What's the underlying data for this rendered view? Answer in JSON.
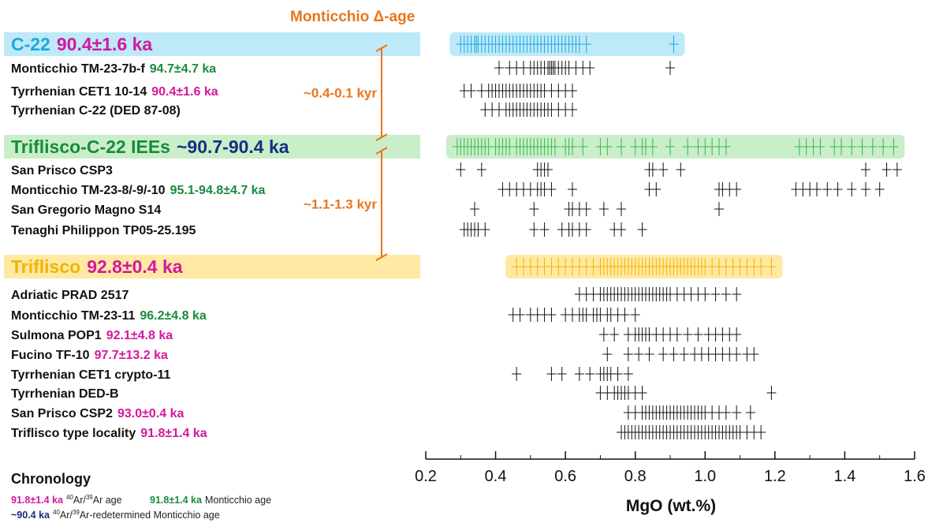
{
  "chart_data": {
    "type": "scatter",
    "title": "Monticchio Δ-age",
    "xlabel": "MgO (wt.%)",
    "xlim": [
      0.2,
      1.6
    ],
    "x_ticks": [
      "0.2",
      "0.4",
      "0.6",
      "0.8",
      "1.0",
      "1.2",
      "1.4",
      "1.6"
    ],
    "rows": [
      {
        "group": "C-22",
        "label": "C-22",
        "age": "90.4±1.6 ka",
        "age_color": "#d4179e",
        "label_color": "#1ea7df",
        "kind": "header",
        "band_color": "#bde9f8",
        "mark_color": "#1ea7df",
        "x": [
          0.3,
          0.31,
          0.32,
          0.33,
          0.34,
          0.345,
          0.35,
          0.36,
          0.37,
          0.38,
          0.39,
          0.4,
          0.41,
          0.42,
          0.43,
          0.44,
          0.45,
          0.46,
          0.47,
          0.48,
          0.49,
          0.5,
          0.51,
          0.52,
          0.53,
          0.54,
          0.55,
          0.56,
          0.57,
          0.58,
          0.59,
          0.6,
          0.61,
          0.62,
          0.63,
          0.64,
          0.66,
          0.91
        ]
      },
      {
        "group": "C-22",
        "label": "Monticchio TM-23-7b-f",
        "age": "94.7±4.7 ka",
        "age_color": "#1a8a3c",
        "kind": "sample",
        "x": [
          0.41,
          0.44,
          0.46,
          0.48,
          0.5,
          0.51,
          0.52,
          0.53,
          0.54,
          0.55,
          0.555,
          0.56,
          0.565,
          0.57,
          0.58,
          0.59,
          0.6,
          0.61,
          0.63,
          0.65,
          0.67,
          0.9
        ]
      },
      {
        "group": "C-22",
        "label": "Tyrrhenian CET1 10-14",
        "age": "90.4±1.6 ka",
        "age_color": "#d4179e",
        "kind": "sample",
        "x": [
          0.31,
          0.33,
          0.36,
          0.38,
          0.39,
          0.4,
          0.41,
          0.42,
          0.43,
          0.44,
          0.45,
          0.46,
          0.47,
          0.48,
          0.49,
          0.5,
          0.51,
          0.52,
          0.53,
          0.54,
          0.56,
          0.58,
          0.6,
          0.62
        ]
      },
      {
        "group": "C-22",
        "label": "Tyrrhenian C-22 (DED 87-08)",
        "age": "",
        "kind": "sample",
        "x": [
          0.37,
          0.39,
          0.41,
          0.43,
          0.44,
          0.45,
          0.46,
          0.47,
          0.48,
          0.49,
          0.5,
          0.51,
          0.52,
          0.53,
          0.54,
          0.55,
          0.56,
          0.58,
          0.6,
          0.62
        ]
      },
      {
        "group": "Triflisco-C-22 IEEs",
        "label": "Triflisco-C-22 IEEs",
        "age": "~90.7-90.4 ka",
        "age_color": "#14307f",
        "label_color": "#1a8a3c",
        "kind": "header",
        "band_color": "#c9eec9",
        "mark_color": "#3cb64a",
        "x": [
          0.29,
          0.3,
          0.31,
          0.32,
          0.33,
          0.34,
          0.35,
          0.36,
          0.37,
          0.38,
          0.4,
          0.41,
          0.42,
          0.43,
          0.44,
          0.46,
          0.47,
          0.48,
          0.49,
          0.5,
          0.51,
          0.52,
          0.53,
          0.54,
          0.55,
          0.56,
          0.57,
          0.6,
          0.61,
          0.62,
          0.65,
          0.7,
          0.72,
          0.76,
          0.8,
          0.82,
          0.83,
          0.85,
          0.9,
          0.95,
          0.98,
          1.0,
          1.02,
          1.04,
          1.06,
          1.27,
          1.29,
          1.31,
          1.33,
          1.37,
          1.39,
          1.42,
          1.45,
          1.48,
          1.51,
          1.54
        ]
      },
      {
        "group": "Triflisco-C-22 IEEs",
        "label": "San Prisco CSP3",
        "age": "",
        "kind": "sample",
        "x": [
          0.3,
          0.36,
          0.52,
          0.53,
          0.54,
          0.55,
          0.84,
          0.85,
          0.88,
          0.93,
          1.46,
          1.52,
          1.55
        ]
      },
      {
        "group": "Triflisco-C-22 IEEs",
        "label": "Monticchio TM-23-8/-9/-10",
        "age": "95.1-94.8±4.7 ka",
        "age_color": "#1a8a3c",
        "kind": "sample",
        "x": [
          0.42,
          0.44,
          0.46,
          0.48,
          0.5,
          0.52,
          0.53,
          0.54,
          0.56,
          0.62,
          0.84,
          0.86,
          1.04,
          1.05,
          1.07,
          1.09,
          1.26,
          1.28,
          1.3,
          1.32,
          1.35,
          1.38,
          1.42,
          1.46,
          1.5
        ]
      },
      {
        "group": "Triflisco-C-22 IEEs",
        "label": "San Gregorio Magno S14",
        "age": "",
        "kind": "sample",
        "x": [
          0.34,
          0.51,
          0.61,
          0.62,
          0.64,
          0.66,
          0.71,
          0.76,
          1.04
        ]
      },
      {
        "group": "Triflisco-C-22 IEEs",
        "label": "Tenaghi Philippon TP05-25.195",
        "age": "",
        "kind": "sample",
        "x": [
          0.31,
          0.32,
          0.33,
          0.34,
          0.35,
          0.37,
          0.51,
          0.54,
          0.59,
          0.61,
          0.62,
          0.64,
          0.66,
          0.74,
          0.76,
          0.82
        ]
      },
      {
        "group": "Triflisco",
        "label": "Triflisco",
        "age": "92.8±0.4 ka",
        "age_color": "#d4179e",
        "label_color": "#f2b300",
        "kind": "header",
        "band_color": "#ffe9a3",
        "mark_color": "#f2b300",
        "x": [
          0.46,
          0.48,
          0.5,
          0.52,
          0.54,
          0.56,
          0.58,
          0.6,
          0.62,
          0.64,
          0.66,
          0.68,
          0.7,
          0.71,
          0.72,
          0.73,
          0.74,
          0.75,
          0.76,
          0.77,
          0.78,
          0.79,
          0.8,
          0.81,
          0.82,
          0.83,
          0.84,
          0.85,
          0.86,
          0.87,
          0.88,
          0.89,
          0.9,
          0.91,
          0.92,
          0.93,
          0.94,
          0.95,
          0.96,
          0.97,
          0.98,
          0.99,
          1.0,
          1.02,
          1.04,
          1.06,
          1.08,
          1.1,
          1.12,
          1.14,
          1.16,
          1.19
        ]
      },
      {
        "group": "Triflisco",
        "label": "Adriatic PRAD 2517",
        "age": "",
        "kind": "sample",
        "x": [
          0.64,
          0.66,
          0.68,
          0.7,
          0.71,
          0.72,
          0.73,
          0.74,
          0.75,
          0.76,
          0.77,
          0.78,
          0.79,
          0.8,
          0.81,
          0.82,
          0.83,
          0.84,
          0.85,
          0.86,
          0.87,
          0.88,
          0.89,
          0.9,
          0.92,
          0.94,
          0.96,
          0.98,
          1.0,
          1.03,
          1.06,
          1.09
        ]
      },
      {
        "group": "Triflisco",
        "label": "Monticchio TM-23-11",
        "age": "96.2±4.8 ka",
        "age_color": "#1a8a3c",
        "kind": "sample",
        "x": [
          0.45,
          0.47,
          0.5,
          0.52,
          0.54,
          0.56,
          0.6,
          0.62,
          0.64,
          0.65,
          0.66,
          0.68,
          0.69,
          0.7,
          0.72,
          0.73,
          0.75,
          0.77,
          0.8
        ]
      },
      {
        "group": "Triflisco",
        "label": "Sulmona POP1",
        "age": "92.1±4.8 ka",
        "age_color": "#d4179e",
        "kind": "sample",
        "x": [
          0.71,
          0.74,
          0.78,
          0.8,
          0.81,
          0.82,
          0.83,
          0.84,
          0.86,
          0.88,
          0.9,
          0.92,
          0.95,
          0.98,
          1.01,
          1.03,
          1.05,
          1.07,
          1.09
        ]
      },
      {
        "group": "Triflisco",
        "label": "Fucino TF-10",
        "age": "97.7±13.2 ka",
        "age_color": "#d4179e",
        "kind": "sample",
        "x": [
          0.72,
          0.78,
          0.81,
          0.84,
          0.88,
          0.91,
          0.94,
          0.97,
          0.99,
          1.01,
          1.03,
          1.05,
          1.07,
          1.09,
          1.12,
          1.14
        ]
      },
      {
        "group": "Triflisco",
        "label": "Tyrrhenian CET1 crypto-11",
        "age": "",
        "kind": "sample",
        "x": [
          0.46,
          0.56,
          0.59,
          0.64,
          0.67,
          0.7,
          0.71,
          0.72,
          0.73,
          0.75,
          0.78
        ]
      },
      {
        "group": "Triflisco",
        "label": "Tyrrhenian DED-B",
        "age": "",
        "kind": "sample",
        "x": [
          0.7,
          0.72,
          0.74,
          0.75,
          0.76,
          0.77,
          0.78,
          0.8,
          0.82,
          1.19
        ]
      },
      {
        "group": "Triflisco",
        "label": "San Prisco CSP2",
        "age": "93.0±0.4 ka",
        "age_color": "#d4179e",
        "kind": "sample",
        "x": [
          0.78,
          0.8,
          0.82,
          0.83,
          0.84,
          0.85,
          0.86,
          0.87,
          0.88,
          0.89,
          0.9,
          0.91,
          0.92,
          0.93,
          0.94,
          0.95,
          0.96,
          0.97,
          0.98,
          0.99,
          1.0,
          1.02,
          1.04,
          1.06,
          1.09,
          1.13
        ]
      },
      {
        "group": "Triflisco",
        "label": "Triflisco type locality",
        "age": "91.8±1.4 ka",
        "age_color": "#d4179e",
        "kind": "sample",
        "x": [
          0.76,
          0.77,
          0.78,
          0.79,
          0.8,
          0.81,
          0.82,
          0.83,
          0.84,
          0.85,
          0.86,
          0.87,
          0.88,
          0.89,
          0.9,
          0.91,
          0.92,
          0.93,
          0.94,
          0.95,
          0.96,
          0.97,
          0.98,
          0.99,
          1.0,
          1.01,
          1.02,
          1.03,
          1.04,
          1.05,
          1.06,
          1.07,
          1.08,
          1.09,
          1.1,
          1.12,
          1.14,
          1.16
        ]
      }
    ],
    "brackets": [
      {
        "text": "~0.4-0.1 kyr",
        "from_row": 0,
        "to_row": 4
      },
      {
        "text": "~1.1-1.3 kyr",
        "from_row": 4,
        "to_row": 9
      }
    ],
    "chronology": {
      "title": "Chronology",
      "items": [
        {
          "age": "91.8±1.4 ka",
          "age_color": "#d4179e",
          "desc_sup": "40",
          "desc_mid": "Ar/",
          "desc_sup2": "39",
          "desc_tail": "Ar age"
        },
        {
          "age": "91.8±1.4 ka",
          "age_color": "#1a8a3c",
          "desc_tail": "Monticchio age"
        },
        {
          "age": "~90.4 ka",
          "age_color": "#14307f",
          "desc_sup": "40",
          "desc_mid": "Ar/",
          "desc_sup2": "39",
          "desc_tail": "Ar-redetermined Monticchio age"
        }
      ]
    },
    "colors": {
      "orange": "#e8761c",
      "black": "#111111"
    }
  }
}
